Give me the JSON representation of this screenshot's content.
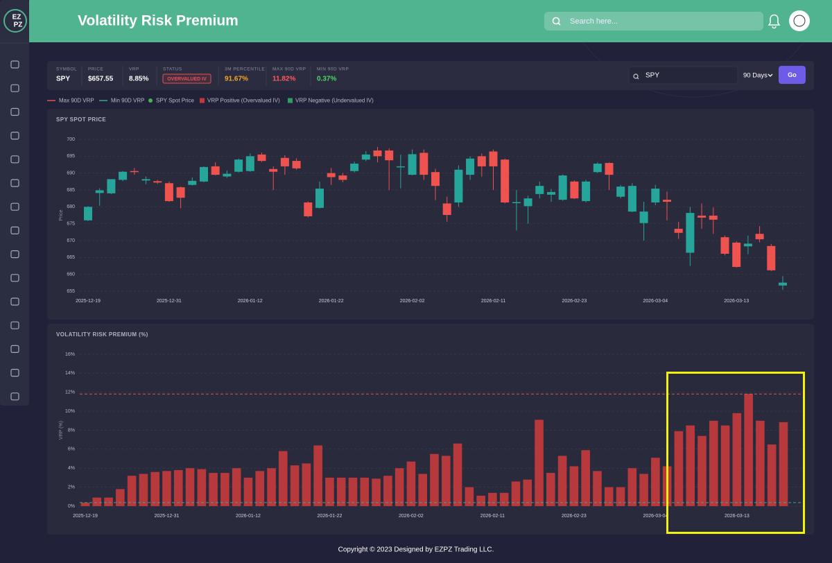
{
  "header": {
    "logo": [
      "EZ",
      "PZ"
    ],
    "title": "Volatility Risk Premium",
    "search_placeholder": "Search here..."
  },
  "stats": [
    {
      "label": "SYMBOL",
      "value": "SPY",
      "color": "#ffffff"
    },
    {
      "label": "PRICE",
      "value": "$657.55",
      "color": "#ffffff"
    },
    {
      "label": "VRP",
      "value": "8.85%",
      "color": "#ffffff"
    },
    {
      "label": "STATUS",
      "value": "OVERVALUED IV",
      "color": "#e8504f"
    },
    {
      "label": "3M PERCENTILE",
      "value": "91.67%",
      "color": "#f5a623"
    },
    {
      "label": "MAX 90D VRP",
      "value": "11.82%",
      "color": "#ff5a5a"
    },
    {
      "label": "MIN 90D VRP",
      "value": "0.37%",
      "color": "#4cd964"
    }
  ],
  "controls": {
    "symbol_input": "SPY",
    "period": "90 Days",
    "button": "Go"
  },
  "legend": [
    {
      "label": "Max 90D VRP",
      "marker": "line",
      "color": "#e05555"
    },
    {
      "label": "Min 90D VRP",
      "marker": "line",
      "color": "#3fa88e"
    },
    {
      "label": "SPY Spot Price",
      "marker": "dot",
      "color": "#4caf50"
    },
    {
      "label": "VRP Positive (Overvalued IV)",
      "marker": "square",
      "color": "#c0393b"
    },
    {
      "label": "VRP Negative (Undervalued IV)",
      "marker": "square",
      "color": "#2e9e5e"
    }
  ],
  "chart_data": [
    {
      "type": "candlestick",
      "title": "SPY SPOT PRICE",
      "y_label": "Price",
      "categories": [
        "2025-12-19",
        null,
        null,
        null,
        null,
        null,
        null,
        "2025-12-31",
        null,
        null,
        null,
        null,
        null,
        null,
        "2026-01-12",
        null,
        null,
        null,
        null,
        null,
        null,
        "2026-01-22",
        null,
        null,
        null,
        null,
        null,
        null,
        "2026-02-02",
        null,
        null,
        null,
        null,
        null,
        null,
        "2026-02-11",
        null,
        null,
        null,
        null,
        null,
        null,
        "2026-02-23",
        null,
        null,
        null,
        null,
        null,
        null,
        "2026-03-04",
        null,
        null,
        null,
        null,
        null,
        null,
        "2026-03-13",
        null,
        null,
        null,
        null
      ],
      "series": [
        {
          "name": "SPY Spot Price",
          "up_color": "#26a69a",
          "down_color": "#ef5350",
          "open": [
            676,
            684.1,
            684,
            688,
            690.6,
            687.8,
            687.6,
            687,
            685.8,
            686.5,
            687.5,
            692,
            689,
            690.4,
            690.6,
            695.5,
            691.2,
            694.5,
            693.6,
            681.3,
            679.7,
            690,
            689.3,
            690.6,
            694,
            696.7,
            696.7,
            691.9,
            689.5,
            696,
            690.3,
            681,
            681.3,
            689.5,
            695,
            696.4,
            694,
            681.3,
            680.2,
            683.8,
            683.6,
            682.1,
            687.5,
            681.7,
            690.3,
            693,
            683,
            678.6,
            675.2,
            681.3,
            682.1,
            673.5,
            666.4,
            677.4,
            677.4,
            671,
            669.4,
            668.3,
            672,
            668.4,
            656.7
          ],
          "high": [
            680.2,
            685.5,
            688.2,
            690.6,
            691.5,
            689,
            688,
            687.5,
            686,
            688.7,
            692,
            693.2,
            690.8,
            694.3,
            695.8,
            696.1,
            692,
            695.3,
            694.4,
            681.6,
            687.5,
            691.5,
            690,
            693.4,
            696.5,
            697.7,
            697.3,
            695.5,
            697,
            697,
            691.3,
            683,
            692.3,
            695,
            695.8,
            697,
            694.3,
            685,
            683.3,
            687.5,
            685.3,
            689.6,
            687.8,
            688,
            693.2,
            693.2,
            686.5,
            687,
            681.5,
            686.5,
            684.5,
            675.6,
            680,
            681,
            679.8,
            671.5,
            669.8,
            671.5,
            674.3,
            669,
            659.5
          ],
          "low": [
            675.8,
            680.3,
            683.8,
            687.6,
            689.5,
            686.7,
            686.8,
            681.5,
            679.6,
            686.3,
            687.3,
            689.3,
            688.6,
            690.2,
            690.4,
            693.3,
            685,
            689.5,
            691,
            676.9,
            679.5,
            686.5,
            687.3,
            690.2,
            693.5,
            693.2,
            685,
            685.5,
            689.3,
            688,
            682,
            675.6,
            680,
            688,
            689,
            685,
            681,
            673,
            675,
            682.5,
            681.5,
            681.8,
            682.3,
            681.3,
            690,
            685,
            682.5,
            678.4,
            670,
            680.5,
            676,
            670.5,
            662.5,
            673.5,
            672,
            665.6,
            662,
            666,
            669.5,
            661,
            655.4
          ],
          "close": [
            680,
            684.9,
            688.2,
            690.4,
            690.3,
            688.2,
            687.2,
            681.7,
            682.7,
            687.7,
            691.8,
            689.5,
            689.8,
            694,
            695,
            693.6,
            690.4,
            692,
            691.4,
            677.2,
            685.4,
            688.8,
            688,
            692.8,
            695.5,
            695,
            693.8,
            692,
            695.6,
            689.5,
            686.2,
            677.6,
            691,
            694.3,
            692,
            692,
            681.3,
            681.4,
            682.5,
            686.2,
            684.4,
            689.3,
            682.5,
            687.5,
            692.8,
            689.5,
            686,
            686.2,
            678.6,
            685.4,
            681.5,
            672.3,
            678.2,
            676.8,
            676.2,
            666.1,
            662.2,
            669.1,
            670.4,
            661.2,
            657.55
          ]
        }
      ],
      "ylim": [
        654,
        701
      ],
      "yticks": [
        655,
        660,
        665,
        670,
        675,
        680,
        685,
        690,
        695,
        700
      ],
      "grid": true
    },
    {
      "type": "bar",
      "title": "VOLATILITY RISK PREMIUM (%)",
      "y_label": "VRP (%)",
      "categories": [
        "2025-12-19",
        null,
        null,
        null,
        null,
        null,
        null,
        "2025-12-31",
        null,
        null,
        null,
        null,
        null,
        null,
        "2026-01-12",
        null,
        null,
        null,
        null,
        null,
        null,
        "2026-01-22",
        null,
        null,
        null,
        null,
        null,
        null,
        "2026-02-02",
        null,
        null,
        null,
        null,
        null,
        null,
        "2026-02-11",
        null,
        null,
        null,
        null,
        null,
        null,
        "2026-02-23",
        null,
        null,
        null,
        null,
        null,
        null,
        "2026-03-04",
        null,
        null,
        null,
        null,
        null,
        null,
        "2026-03-13",
        null,
        null,
        null,
        null
      ],
      "values": [
        0.37,
        0.9,
        0.9,
        1.8,
        3.2,
        3.4,
        3.6,
        3.7,
        3.8,
        4.0,
        3.9,
        3.5,
        3.5,
        4.0,
        3.0,
        3.7,
        4.0,
        5.8,
        4.3,
        4.5,
        6.4,
        3.0,
        3.0,
        3.0,
        3.0,
        2.9,
        3.2,
        4.0,
        4.7,
        3.4,
        5.5,
        5.3,
        6.6,
        2.0,
        1.1,
        1.4,
        1.4,
        2.6,
        2.8,
        9.1,
        3.5,
        5.3,
        4.2,
        5.9,
        3.7,
        2.0,
        2.0,
        4.0,
        3.4,
        5.1,
        4.2,
        7.9,
        8.5,
        7.4,
        9.0,
        8.5,
        9.8,
        11.82,
        9.0,
        6.5,
        8.85
      ],
      "color": "#b8393b",
      "reference_lines": [
        {
          "name": "Max 90D VRP",
          "value": 11.82,
          "color": "#e05555"
        },
        {
          "name": "Min 90D VRP",
          "value": 0.37,
          "color": "#3fa88e"
        }
      ],
      "ylim": [
        0,
        16
      ],
      "yticks": [
        {
          "value": 0,
          "label": "0%"
        },
        {
          "value": 2,
          "label": "2%"
        },
        {
          "value": 4,
          "label": "4%"
        },
        {
          "value": 6,
          "label": "6%"
        },
        {
          "value": 8,
          "label": "8%"
        },
        {
          "value": 10,
          "label": "10%"
        },
        {
          "value": 12,
          "label": "12%"
        },
        {
          "value": 14,
          "label": "14%"
        },
        {
          "value": 16,
          "label": "16%"
        }
      ],
      "grid": true
    }
  ],
  "footer": "Copyright © 2023 Designed by EZPZ Trading LLC."
}
